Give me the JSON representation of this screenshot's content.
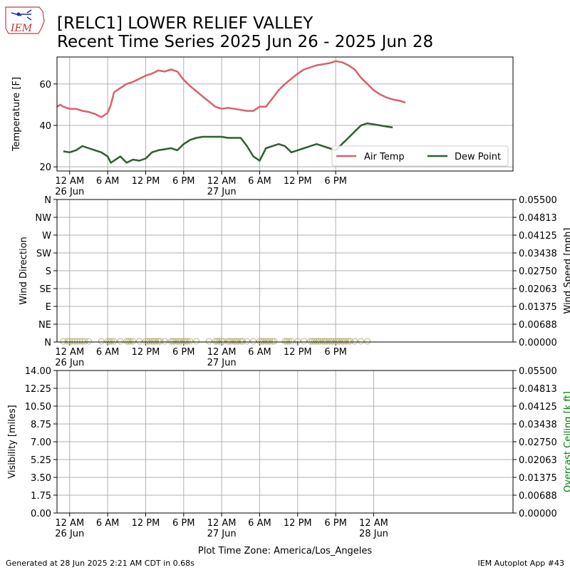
{
  "header": {
    "logo_text": "IEM",
    "title_line1": "[RELC1] LOWER RELIEF VALLEY",
    "title_line2": "Recent Time Series 2025 Jun 26 - 2025 Jun 28"
  },
  "footer": {
    "generated": "Generated at 28 Jun 2025 2:21 AM CDT in 0.68s",
    "app": "IEM Autoplot App #43",
    "timezone": "Plot Time Zone: America/Los_Angeles"
  },
  "colors": {
    "air_temp": "#d9606a",
    "dew_point": "#2f5f2f",
    "wind_marker": "#b5b37a",
    "ceiling_label": "#008000",
    "grid": "#b0b0b0"
  },
  "chart_data": [
    {
      "type": "line",
      "panel": "temperature",
      "ylabel": "Temperature [F]",
      "ylim": [
        18,
        73
      ],
      "yticks": [
        20,
        40,
        60
      ],
      "xlim_hours": [
        -2,
        70
      ],
      "grid": true,
      "legend_placement": "lower-right",
      "x_tick_labels": [
        {
          "hour": 0,
          "line1": "12 AM",
          "line2": "26 Jun"
        },
        {
          "hour": 6,
          "line1": "6 AM",
          "line2": ""
        },
        {
          "hour": 12,
          "line1": "12 PM",
          "line2": ""
        },
        {
          "hour": 18,
          "line1": "6 PM",
          "line2": ""
        },
        {
          "hour": 24,
          "line1": "12 AM",
          "line2": "27 Jun"
        },
        {
          "hour": 30,
          "line1": "6 AM",
          "line2": ""
        },
        {
          "hour": 36,
          "line1": "12 PM",
          "line2": ""
        },
        {
          "hour": 42,
          "line1": "6 PM",
          "line2": ""
        }
      ],
      "series": [
        {
          "name": "Air Temp",
          "x": [
            -2,
            -1.5,
            -1,
            0,
            1,
            2,
            3,
            4,
            5,
            6,
            6.5,
            7,
            8,
            9,
            10,
            11,
            12,
            13,
            14,
            15,
            16,
            17,
            18,
            19,
            20,
            21,
            22,
            23,
            24,
            25,
            26,
            27,
            28,
            29,
            29.5,
            30,
            31,
            32,
            33,
            34,
            35,
            36,
            37,
            38,
            39,
            40,
            41,
            42,
            43,
            44,
            45,
            46,
            47,
            48,
            49,
            50,
            51,
            52,
            53
          ],
          "y": [
            49,
            50,
            49,
            48,
            48,
            47,
            46.5,
            45.5,
            44,
            46,
            50,
            56,
            58,
            60,
            61,
            62.5,
            64,
            65,
            66.5,
            66,
            67,
            66,
            62,
            59,
            56.5,
            54,
            51.5,
            49,
            48,
            48.5,
            48,
            47.5,
            47,
            47,
            48,
            49,
            49,
            53,
            57,
            60,
            62.5,
            65,
            67,
            68,
            69,
            69.5,
            70,
            71,
            70.5,
            69,
            67,
            63,
            60,
            57,
            55,
            53.5,
            52.5,
            52,
            51
          ]
        },
        {
          "name": "Dew Point",
          "x": [
            -1,
            0,
            1,
            2,
            3,
            4,
            5,
            6,
            6.5,
            7,
            8,
            9,
            10,
            11,
            12,
            13,
            14,
            15,
            16,
            17,
            18,
            19,
            20,
            21,
            22,
            23,
            24,
            25,
            26,
            27,
            28,
            29,
            30,
            31,
            32,
            33,
            34,
            35,
            36,
            37,
            38,
            39,
            40,
            41,
            42,
            43,
            44,
            45,
            46,
            47,
            48,
            49,
            50,
            51
          ],
          "y": [
            27.5,
            27,
            28,
            30,
            29,
            28,
            27,
            25,
            22,
            23,
            25,
            22,
            23.5,
            23,
            24,
            27,
            28,
            28.5,
            29,
            28,
            31,
            33,
            34,
            34.5,
            34.5,
            34.5,
            34.5,
            34,
            34,
            34,
            30,
            25,
            23,
            29,
            30,
            31,
            30,
            27,
            28,
            29,
            30,
            31,
            30,
            29,
            28,
            31,
            34,
            37,
            40,
            41,
            40.5,
            40,
            39.5,
            39
          ]
        }
      ]
    },
    {
      "type": "scatter",
      "panel": "wind",
      "ylabel": "Wind Direction",
      "y2label": "Wind Speed [mph]",
      "ytick_labels": [
        "N",
        "NE",
        "E",
        "SE",
        "S",
        "SW",
        "W",
        "NW",
        "N"
      ],
      "y2ticks": [
        "0.00000",
        "0.00688",
        "0.01375",
        "0.02063",
        "0.02750",
        "0.03438",
        "0.04125",
        "0.04813",
        "0.05500"
      ],
      "ylim": [
        0,
        360
      ],
      "y2lim": [
        0,
        0.055
      ],
      "grid": true,
      "x_tick_labels": [
        {
          "hour": 0,
          "line1": "12 AM",
          "line2": "26 Jun"
        },
        {
          "hour": 6,
          "line1": "6 AM",
          "line2": ""
        },
        {
          "hour": 12,
          "line1": "12 PM",
          "line2": ""
        },
        {
          "hour": 18,
          "line1": "6 PM",
          "line2": ""
        },
        {
          "hour": 24,
          "line1": "12 AM",
          "line2": "27 Jun"
        },
        {
          "hour": 30,
          "line1": "6 AM",
          "line2": ""
        },
        {
          "hour": 36,
          "line1": "12 PM",
          "line2": ""
        },
        {
          "hour": 42,
          "line1": "6 PM",
          "line2": ""
        }
      ],
      "series": [
        {
          "x": [
            -1,
            -0.3,
            0,
            0.4,
            0.8,
            1.2,
            1.6,
            2,
            2.4,
            3,
            5,
            6,
            6.3,
            6.6,
            7,
            8,
            9,
            9.3,
            9.6,
            10,
            11,
            12,
            12.3,
            12.6,
            13,
            13.3,
            13.6,
            14,
            14.3,
            15,
            16,
            16.3,
            16.6,
            17,
            17.3,
            17.6,
            18,
            18.3,
            18.6,
            19,
            20,
            22,
            23,
            23.3,
            23.6,
            24,
            24.3,
            25,
            25.3,
            25.6,
            26,
            26.3,
            26.6,
            27,
            27.3,
            28,
            29,
            30,
            30.3,
            30.6,
            31,
            31.3,
            31.6,
            32,
            32.3,
            34,
            34.3,
            34.6,
            35,
            36,
            37,
            38,
            38.3,
            38.6,
            39,
            39.3,
            39.6,
            40,
            40.3,
            40.6,
            41,
            41.3,
            41.6,
            42,
            42.3,
            42.6,
            43,
            43.3,
            43.6,
            44,
            44.3,
            45,
            46,
            47
          ],
          "y": [
            0,
            0,
            0,
            0,
            0,
            0,
            0,
            0,
            0,
            0,
            0,
            0,
            0,
            0,
            0,
            0,
            0,
            0,
            0,
            0,
            0,
            0,
            0,
            0,
            0,
            0,
            0,
            0,
            0,
            0,
            0,
            0,
            0,
            0,
            0,
            0,
            0,
            0,
            0,
            0,
            0,
            0,
            0,
            0,
            0,
            0,
            0,
            0,
            0,
            0,
            0,
            0,
            0,
            0,
            0,
            0,
            0,
            0,
            0,
            0,
            0,
            0,
            0,
            0,
            0,
            0,
            0,
            0,
            0,
            0,
            0,
            0,
            0,
            0,
            0,
            0,
            0,
            0,
            0,
            0,
            0,
            0,
            0,
            0,
            0,
            0,
            0,
            0,
            0,
            0,
            0,
            0,
            0,
            0
          ]
        }
      ]
    },
    {
      "type": "line",
      "panel": "visibility",
      "ylabel": "Visibility [miles]",
      "y2label": "Overcast Ceiling [k ft]",
      "yticks": [
        "0.00",
        "1.75",
        "3.50",
        "5.25",
        "7.00",
        "8.75",
        "10.50",
        "12.25",
        "14.00"
      ],
      "y2ticks": [
        "0.00000",
        "0.00688",
        "0.01375",
        "0.02063",
        "0.02750",
        "0.03438",
        "0.04125",
        "0.04813",
        "0.05500"
      ],
      "ylim": [
        0,
        14
      ],
      "y2lim": [
        0,
        0.055
      ],
      "grid": true,
      "x_tick_labels": [
        {
          "hour": 0,
          "line1": "12 AM",
          "line2": "26 Jun"
        },
        {
          "hour": 6,
          "line1": "6 AM",
          "line2": ""
        },
        {
          "hour": 12,
          "line1": "12 PM",
          "line2": ""
        },
        {
          "hour": 18,
          "line1": "6 PM",
          "line2": ""
        },
        {
          "hour": 24,
          "line1": "12 AM",
          "line2": "27 Jun"
        },
        {
          "hour": 30,
          "line1": "6 AM",
          "line2": ""
        },
        {
          "hour": 36,
          "line1": "12 PM",
          "line2": ""
        },
        {
          "hour": 42,
          "line1": "6 PM",
          "line2": ""
        },
        {
          "hour": 48,
          "line1": "12 AM",
          "line2": "28 Jun"
        }
      ],
      "series": []
    }
  ]
}
